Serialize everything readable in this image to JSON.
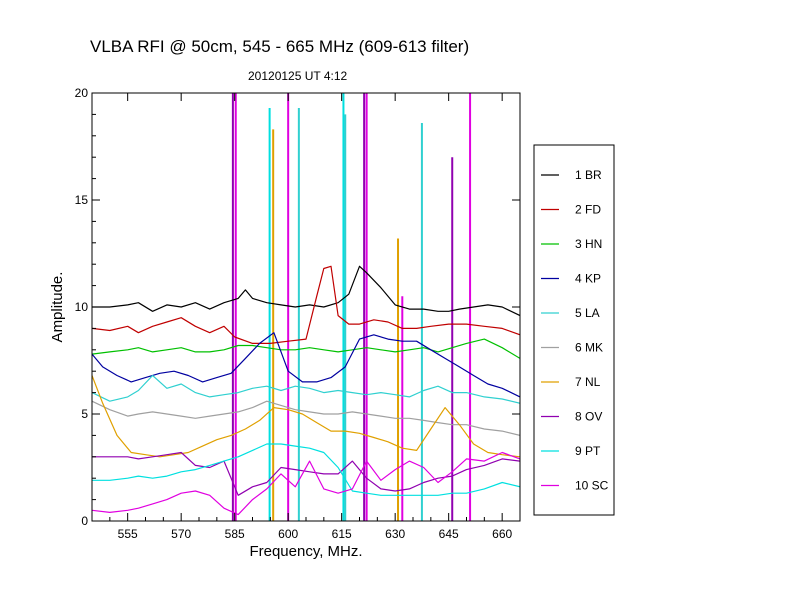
{
  "chart_data": {
    "type": "line",
    "title": "VLBA RFI @ 50cm, 545 - 665 MHz  (609-613 filter)",
    "subtitle": "20120125   UT 4:12",
    "xlabel": "Frequency, MHz.",
    "ylabel": "Amplitude.",
    "xlim": [
      545,
      665
    ],
    "ylim": [
      0,
      20
    ],
    "xticks": [
      555,
      570,
      585,
      600,
      615,
      630,
      645,
      660
    ],
    "yticks": [
      0,
      5,
      10,
      15,
      20
    ],
    "grid": false,
    "legend_position": "right",
    "series": [
      {
        "name": "1 BR",
        "color": "#000000",
        "x": [
          545,
          550,
          555,
          558,
          562,
          566,
          570,
          574,
          578,
          582,
          586,
          588,
          590,
          594,
          598,
          602,
          606,
          610,
          614,
          617,
          620,
          622,
          626,
          630,
          634,
          638,
          642,
          645,
          648,
          652,
          656,
          660,
          665
        ],
        "y": [
          10.0,
          10.0,
          10.1,
          10.2,
          9.8,
          10.1,
          10.0,
          10.2,
          9.9,
          10.2,
          10.4,
          10.8,
          10.4,
          10.2,
          10.1,
          10.0,
          10.1,
          10.0,
          10.2,
          10.6,
          11.9,
          11.6,
          10.9,
          10.1,
          9.9,
          9.9,
          9.8,
          9.8,
          9.9,
          10.0,
          10.1,
          10.0,
          9.6
        ]
      },
      {
        "name": "2 FD",
        "color": "#c00000",
        "x": [
          545,
          550,
          555,
          558,
          562,
          566,
          570,
          574,
          578,
          582,
          585,
          590,
          595,
          600,
          605,
          608,
          610,
          612,
          614,
          617,
          620,
          624,
          628,
          632,
          636,
          640,
          645,
          650,
          655,
          660,
          665
        ],
        "y": [
          9.0,
          8.9,
          9.1,
          8.8,
          9.1,
          9.3,
          9.5,
          9.1,
          8.8,
          9.1,
          8.6,
          8.3,
          8.3,
          8.4,
          8.5,
          10.5,
          11.8,
          11.9,
          9.6,
          9.2,
          9.2,
          9.4,
          9.3,
          9.0,
          9.0,
          9.1,
          9.2,
          9.2,
          9.1,
          9.0,
          8.7
        ]
      },
      {
        "name": "3 HN",
        "color": "#00c000",
        "x": [
          545,
          550,
          555,
          558,
          562,
          566,
          570,
          574,
          578,
          582,
          586,
          590,
          594,
          598,
          602,
          606,
          610,
          614,
          618,
          622,
          626,
          630,
          634,
          638,
          642,
          646,
          650,
          655,
          660,
          665
        ],
        "y": [
          7.8,
          7.9,
          8.0,
          8.1,
          7.9,
          8.0,
          8.1,
          7.9,
          7.9,
          8.0,
          8.2,
          8.2,
          8.1,
          8.0,
          8.0,
          8.1,
          8.0,
          7.9,
          8.0,
          8.1,
          8.0,
          7.9,
          8.0,
          8.1,
          7.9,
          8.1,
          8.3,
          8.5,
          8.1,
          7.6
        ]
      },
      {
        "name": "4 KP",
        "color": "#0000a0",
        "x": [
          545,
          548,
          552,
          556,
          560,
          564,
          568,
          572,
          576,
          580,
          584,
          588,
          592,
          596,
          600,
          604,
          608,
          612,
          616,
          620,
          624,
          628,
          632,
          636,
          640,
          644,
          648,
          652,
          656,
          660,
          665
        ],
        "y": [
          7.8,
          7.2,
          6.8,
          6.5,
          6.7,
          6.9,
          7.0,
          6.8,
          6.5,
          6.7,
          6.9,
          7.6,
          8.3,
          8.8,
          7.0,
          6.5,
          6.5,
          6.7,
          7.2,
          8.5,
          8.7,
          8.5,
          8.4,
          8.4,
          8.0,
          7.6,
          7.2,
          6.8,
          6.4,
          6.2,
          5.8
        ]
      },
      {
        "name": "5 LA",
        "color": "#30d0d0",
        "x": [
          545,
          550,
          555,
          558,
          562,
          566,
          570,
          574,
          578,
          582,
          586,
          590,
          594,
          598,
          602,
          606,
          610,
          614,
          618,
          622,
          626,
          630,
          634,
          638,
          642,
          646,
          650,
          655,
          660,
          665
        ],
        "y": [
          6.0,
          5.6,
          5.8,
          6.1,
          6.8,
          6.2,
          6.4,
          6.0,
          5.8,
          5.9,
          6.0,
          6.2,
          6.3,
          6.1,
          6.3,
          6.2,
          6.0,
          6.1,
          6.0,
          5.9,
          6.0,
          5.9,
          5.8,
          6.1,
          6.3,
          6.0,
          6.0,
          5.8,
          5.7,
          5.5
        ]
      },
      {
        "name": "6 MK",
        "color": "#a0a0a0",
        "x": [
          545,
          550,
          555,
          558,
          562,
          566,
          570,
          574,
          578,
          582,
          586,
          590,
          594,
          598,
          602,
          606,
          610,
          614,
          618,
          622,
          626,
          630,
          634,
          638,
          642,
          646,
          650,
          655,
          660,
          665
        ],
        "y": [
          5.6,
          5.2,
          4.9,
          5.0,
          5.1,
          5.0,
          4.9,
          4.8,
          4.9,
          5.0,
          5.1,
          5.3,
          5.6,
          5.4,
          5.2,
          5.1,
          5.0,
          5.0,
          5.1,
          5.0,
          4.9,
          4.8,
          4.8,
          4.7,
          4.6,
          4.5,
          4.5,
          4.3,
          4.2,
          4.0
        ]
      },
      {
        "name": "7 NL",
        "color": "#e0a000",
        "x": [
          545,
          548,
          552,
          556,
          560,
          564,
          568,
          572,
          576,
          580,
          584,
          588,
          592,
          596,
          600,
          604,
          608,
          612,
          616,
          620,
          624,
          628,
          632,
          636,
          640,
          644,
          648,
          652,
          656,
          660,
          665
        ],
        "y": [
          6.8,
          5.5,
          4.0,
          3.2,
          3.1,
          3.0,
          3.1,
          3.2,
          3.5,
          3.8,
          4.0,
          4.3,
          4.7,
          5.3,
          5.2,
          5.0,
          4.6,
          4.2,
          4.2,
          4.1,
          3.9,
          3.7,
          3.4,
          3.3,
          4.3,
          5.3,
          4.5,
          3.6,
          3.2,
          3.1,
          3.0
        ]
      },
      {
        "name": "8 OV",
        "color": "#9000b0",
        "x": [
          545,
          550,
          555,
          558,
          562,
          566,
          570,
          574,
          578,
          582,
          586,
          590,
          594,
          598,
          602,
          606,
          610,
          614,
          618,
          622,
          626,
          630,
          634,
          638,
          642,
          646,
          650,
          655,
          660,
          665
        ],
        "y": [
          3.0,
          3.0,
          3.0,
          2.9,
          3.0,
          3.1,
          3.2,
          2.6,
          2.5,
          2.8,
          1.2,
          1.6,
          1.8,
          2.5,
          2.4,
          2.3,
          2.2,
          2.2,
          2.8,
          2.0,
          1.5,
          1.4,
          1.5,
          1.8,
          2.0,
          2.1,
          2.4,
          2.6,
          2.9,
          2.8
        ]
      },
      {
        "name": "9 PT",
        "color": "#00e0e0",
        "x": [
          545,
          550,
          555,
          558,
          562,
          566,
          570,
          574,
          578,
          582,
          586,
          590,
          594,
          598,
          602,
          606,
          610,
          614,
          618,
          622,
          626,
          630,
          634,
          638,
          642,
          646,
          650,
          655,
          660,
          665
        ],
        "y": [
          1.9,
          1.9,
          2.0,
          2.1,
          2.0,
          2.1,
          2.3,
          2.4,
          2.6,
          2.8,
          3.0,
          3.3,
          3.6,
          3.6,
          3.5,
          3.4,
          3.2,
          2.5,
          1.4,
          1.3,
          1.2,
          1.2,
          1.2,
          1.2,
          1.2,
          1.3,
          1.3,
          1.5,
          1.8,
          1.6
        ]
      },
      {
        "name": "10 SC",
        "color": "#e000e0",
        "x": [
          545,
          550,
          555,
          558,
          562,
          566,
          570,
          574,
          578,
          582,
          586,
          590,
          594,
          598,
          602,
          606,
          610,
          614,
          618,
          622,
          626,
          630,
          634,
          638,
          642,
          646,
          650,
          655,
          660,
          665
        ],
        "y": [
          0.5,
          0.4,
          0.5,
          0.6,
          0.8,
          1.0,
          1.3,
          1.4,
          1.2,
          0.6,
          0.3,
          1.0,
          1.5,
          2.2,
          1.6,
          2.8,
          1.5,
          1.3,
          1.5,
          2.8,
          1.9,
          2.4,
          2.8,
          2.5,
          1.8,
          2.3,
          2.9,
          2.8,
          3.2,
          2.9
        ]
      }
    ],
    "spikes": [
      {
        "series": "8 OV",
        "x": 584.5,
        "y": 20
      },
      {
        "series": "10 SC",
        "x": 585.3,
        "y": 20
      },
      {
        "series": "8 OV",
        "x": 621.3,
        "y": 20
      },
      {
        "series": "10 SC",
        "x": 622.0,
        "y": 20
      },
      {
        "series": "10 SC",
        "x": 651.0,
        "y": 20
      },
      {
        "series": "10 SC",
        "x": 600.0,
        "y": 20
      },
      {
        "series": "9 PT",
        "x": 594.8,
        "y": 19.3
      },
      {
        "series": "5 LA",
        "x": 603.0,
        "y": 19.3
      },
      {
        "series": "9 PT",
        "x": 615.5,
        "y": 20
      },
      {
        "series": "5 LA",
        "x": 616.0,
        "y": 19.0
      },
      {
        "series": "7 NL",
        "x": 595.8,
        "y": 18.3
      },
      {
        "series": "7 NL",
        "x": 630.8,
        "y": 13.2
      },
      {
        "series": "5 LA",
        "x": 637.5,
        "y": 18.6
      },
      {
        "series": "8 OV",
        "x": 646.0,
        "y": 17.0
      },
      {
        "series": "10 SC",
        "x": 632.0,
        "y": 10.5
      }
    ]
  }
}
